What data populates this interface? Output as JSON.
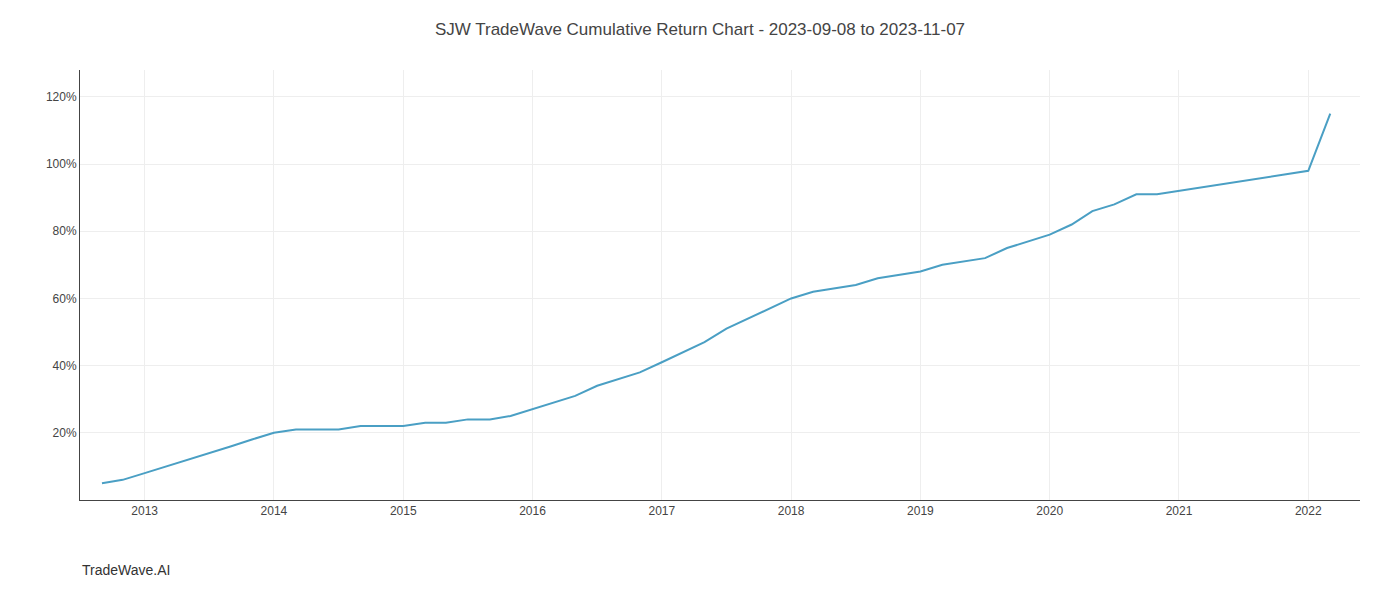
{
  "chart_data": {
    "type": "line",
    "title": "SJW TradeWave Cumulative Return Chart - 2023-09-08 to 2023-11-07",
    "annotations": [
      {
        "text": "TradeWave.AI"
      }
    ],
    "x": [
      2012.67,
      2012.83,
      2013.0,
      2013.17,
      2013.33,
      2013.5,
      2013.67,
      2013.83,
      2014.0,
      2014.17,
      2014.33,
      2014.5,
      2014.67,
      2014.83,
      2015.0,
      2015.17,
      2015.33,
      2015.5,
      2015.67,
      2015.83,
      2016.0,
      2016.17,
      2016.33,
      2016.5,
      2016.67,
      2016.83,
      2017.0,
      2017.17,
      2017.33,
      2017.5,
      2017.67,
      2017.83,
      2018.0,
      2018.17,
      2018.33,
      2018.5,
      2018.67,
      2018.83,
      2019.0,
      2019.17,
      2019.33,
      2019.5,
      2019.67,
      2019.83,
      2020.0,
      2020.17,
      2020.33,
      2020.5,
      2020.67,
      2020.83,
      2021.0,
      2021.17,
      2021.33,
      2021.5,
      2021.67,
      2021.83,
      2022.0,
      2022.17
    ],
    "values": [
      5,
      6,
      8,
      10,
      12,
      14,
      16,
      18,
      20,
      21,
      21,
      21,
      22,
      22,
      22,
      23,
      23,
      24,
      24,
      25,
      27,
      29,
      31,
      34,
      36,
      38,
      41,
      44,
      47,
      51,
      54,
      57,
      60,
      62,
      63,
      64,
      66,
      67,
      68,
      70,
      71,
      72,
      75,
      77,
      79,
      82,
      86,
      88,
      91,
      91,
      92,
      93,
      94,
      95,
      96,
      97,
      98,
      115
    ],
    "color": "#4a9fc4",
    "xlim": [
      2012.5,
      2022.4
    ],
    "xticks": [
      2013,
      2014,
      2015,
      2016,
      2017,
      2018,
      2019,
      2020,
      2021,
      2022
    ],
    "ylim": [
      0,
      128
    ],
    "yticks": [
      {
        "value": 20,
        "label": "20%"
      },
      {
        "value": 40,
        "label": "40%"
      },
      {
        "value": 60,
        "label": "60%"
      },
      {
        "value": 80,
        "label": "80%"
      },
      {
        "value": 100,
        "label": "100%"
      },
      {
        "value": 120,
        "label": "120%"
      }
    ],
    "grid": true
  }
}
